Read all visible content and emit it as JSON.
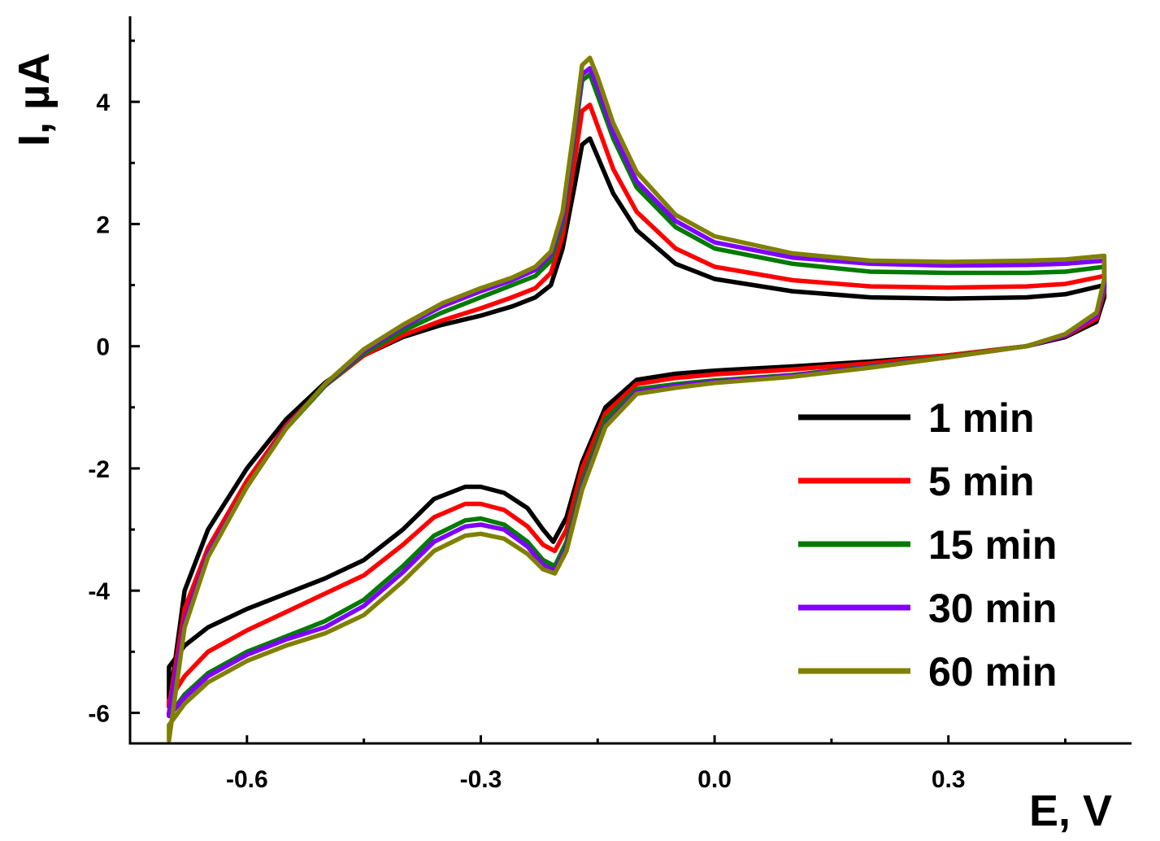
{
  "chart_data": {
    "type": "line",
    "xlabel": "E, V",
    "ylabel": "I, µA",
    "xlim": [
      -0.75,
      0.535
    ],
    "ylim": [
      -6.5,
      5.4
    ],
    "x_ticks": [
      -0.6,
      -0.3,
      0.0,
      0.3
    ],
    "x_tick_labels": [
      "-0.6",
      "-0.3",
      "0.0",
      "0.3"
    ],
    "y_ticks": [
      -6,
      -4,
      -2,
      0,
      2,
      4
    ],
    "y_tick_labels": [
      "-6",
      "-4",
      "-2",
      "0",
      "2",
      "4"
    ],
    "grid": false,
    "legend_position": "bottom-right",
    "series": [
      {
        "name": "1 min",
        "color": "#000000",
        "forward": [
          [
            -0.7,
            -5.25
          ],
          [
            -0.68,
            -4.9
          ],
          [
            -0.65,
            -4.6
          ],
          [
            -0.6,
            -4.3
          ],
          [
            -0.55,
            -4.05
          ],
          [
            -0.5,
            -3.8
          ],
          [
            -0.45,
            -3.5
          ],
          [
            -0.4,
            -3.0
          ],
          [
            -0.36,
            -2.5
          ],
          [
            -0.32,
            -2.3
          ],
          [
            -0.3,
            -2.3
          ],
          [
            -0.27,
            -2.4
          ],
          [
            -0.24,
            -2.65
          ],
          [
            -0.22,
            -3.0
          ],
          [
            -0.207,
            -3.2
          ],
          [
            -0.19,
            -2.8
          ],
          [
            -0.17,
            -1.9
          ],
          [
            -0.14,
            -1.0
          ],
          [
            -0.1,
            -0.55
          ],
          [
            -0.05,
            -0.45
          ],
          [
            0.0,
            -0.4
          ],
          [
            0.1,
            -0.33
          ],
          [
            0.2,
            -0.25
          ],
          [
            0.3,
            -0.15
          ],
          [
            0.4,
            0.0
          ],
          [
            0.45,
            0.15
          ],
          [
            0.49,
            0.4
          ],
          [
            0.5,
            0.8
          ]
        ],
        "reverse": [
          [
            0.5,
            1.0
          ],
          [
            0.45,
            0.85
          ],
          [
            0.4,
            0.8
          ],
          [
            0.3,
            0.78
          ],
          [
            0.2,
            0.8
          ],
          [
            0.1,
            0.9
          ],
          [
            0.0,
            1.1
          ],
          [
            -0.05,
            1.35
          ],
          [
            -0.1,
            1.9
          ],
          [
            -0.13,
            2.5
          ],
          [
            -0.15,
            3.1
          ],
          [
            -0.16,
            3.4
          ],
          [
            -0.17,
            3.3
          ],
          [
            -0.18,
            2.6
          ],
          [
            -0.195,
            1.6
          ],
          [
            -0.21,
            1.0
          ],
          [
            -0.23,
            0.8
          ],
          [
            -0.26,
            0.65
          ],
          [
            -0.3,
            0.5
          ],
          [
            -0.35,
            0.35
          ],
          [
            -0.4,
            0.15
          ],
          [
            -0.45,
            -0.15
          ],
          [
            -0.5,
            -0.6
          ],
          [
            -0.55,
            -1.2
          ],
          [
            -0.6,
            -2.0
          ],
          [
            -0.65,
            -3.0
          ],
          [
            -0.68,
            -4.0
          ],
          [
            -0.7,
            -5.9
          ]
        ]
      },
      {
        "name": "5 min",
        "color": "#ff0000",
        "forward": [
          [
            -0.7,
            -5.8
          ],
          [
            -0.68,
            -5.4
          ],
          [
            -0.65,
            -5.0
          ],
          [
            -0.6,
            -4.65
          ],
          [
            -0.55,
            -4.35
          ],
          [
            -0.5,
            -4.05
          ],
          [
            -0.45,
            -3.75
          ],
          [
            -0.4,
            -3.25
          ],
          [
            -0.36,
            -2.8
          ],
          [
            -0.32,
            -2.58
          ],
          [
            -0.3,
            -2.58
          ],
          [
            -0.27,
            -2.68
          ],
          [
            -0.24,
            -2.95
          ],
          [
            -0.22,
            -3.25
          ],
          [
            -0.205,
            -3.35
          ],
          [
            -0.19,
            -3.0
          ],
          [
            -0.17,
            -2.0
          ],
          [
            -0.14,
            -1.1
          ],
          [
            -0.1,
            -0.62
          ],
          [
            -0.05,
            -0.52
          ],
          [
            0.0,
            -0.46
          ],
          [
            0.1,
            -0.38
          ],
          [
            0.2,
            -0.28
          ],
          [
            0.3,
            -0.15
          ],
          [
            0.4,
            0.0
          ],
          [
            0.45,
            0.17
          ],
          [
            0.49,
            0.45
          ],
          [
            0.5,
            0.9
          ]
        ],
        "reverse": [
          [
            0.5,
            1.15
          ],
          [
            0.45,
            1.02
          ],
          [
            0.4,
            0.98
          ],
          [
            0.3,
            0.96
          ],
          [
            0.2,
            0.98
          ],
          [
            0.1,
            1.08
          ],
          [
            0.0,
            1.3
          ],
          [
            -0.05,
            1.6
          ],
          [
            -0.1,
            2.2
          ],
          [
            -0.13,
            2.9
          ],
          [
            -0.15,
            3.6
          ],
          [
            -0.16,
            3.95
          ],
          [
            -0.17,
            3.85
          ],
          [
            -0.18,
            3.0
          ],
          [
            -0.195,
            1.8
          ],
          [
            -0.21,
            1.2
          ],
          [
            -0.23,
            0.95
          ],
          [
            -0.26,
            0.8
          ],
          [
            -0.3,
            0.62
          ],
          [
            -0.35,
            0.42
          ],
          [
            -0.4,
            0.18
          ],
          [
            -0.45,
            -0.15
          ],
          [
            -0.5,
            -0.65
          ],
          [
            -0.55,
            -1.3
          ],
          [
            -0.6,
            -2.2
          ],
          [
            -0.65,
            -3.3
          ],
          [
            -0.68,
            -4.3
          ],
          [
            -0.7,
            -5.9
          ]
        ]
      },
      {
        "name": "15 min",
        "color": "#007a00",
        "forward": [
          [
            -0.7,
            -6.05
          ],
          [
            -0.68,
            -5.7
          ],
          [
            -0.65,
            -5.35
          ],
          [
            -0.6,
            -5.0
          ],
          [
            -0.55,
            -4.75
          ],
          [
            -0.5,
            -4.5
          ],
          [
            -0.45,
            -4.15
          ],
          [
            -0.4,
            -3.6
          ],
          [
            -0.36,
            -3.1
          ],
          [
            -0.32,
            -2.85
          ],
          [
            -0.3,
            -2.82
          ],
          [
            -0.27,
            -2.92
          ],
          [
            -0.24,
            -3.2
          ],
          [
            -0.22,
            -3.5
          ],
          [
            -0.205,
            -3.6
          ],
          [
            -0.19,
            -3.2
          ],
          [
            -0.17,
            -2.2
          ],
          [
            -0.14,
            -1.2
          ],
          [
            -0.1,
            -0.7
          ],
          [
            -0.05,
            -0.62
          ],
          [
            0.0,
            -0.56
          ],
          [
            0.1,
            -0.47
          ],
          [
            0.2,
            -0.33
          ],
          [
            0.3,
            -0.17
          ],
          [
            0.4,
            0.0
          ],
          [
            0.45,
            0.18
          ],
          [
            0.49,
            0.5
          ],
          [
            0.5,
            0.95
          ]
        ],
        "reverse": [
          [
            0.5,
            1.3
          ],
          [
            0.45,
            1.22
          ],
          [
            0.4,
            1.2
          ],
          [
            0.3,
            1.2
          ],
          [
            0.2,
            1.22
          ],
          [
            0.1,
            1.35
          ],
          [
            0.0,
            1.6
          ],
          [
            -0.05,
            1.95
          ],
          [
            -0.1,
            2.6
          ],
          [
            -0.13,
            3.4
          ],
          [
            -0.15,
            4.1
          ],
          [
            -0.16,
            4.45
          ],
          [
            -0.17,
            4.35
          ],
          [
            -0.18,
            3.4
          ],
          [
            -0.195,
            2.0
          ],
          [
            -0.21,
            1.4
          ],
          [
            -0.23,
            1.15
          ],
          [
            -0.26,
            1.0
          ],
          [
            -0.3,
            0.8
          ],
          [
            -0.35,
            0.55
          ],
          [
            -0.4,
            0.25
          ],
          [
            -0.45,
            -0.12
          ],
          [
            -0.5,
            -0.65
          ],
          [
            -0.55,
            -1.35
          ],
          [
            -0.6,
            -2.3
          ],
          [
            -0.65,
            -3.4
          ],
          [
            -0.68,
            -4.5
          ],
          [
            -0.7,
            -6.0
          ]
        ]
      },
      {
        "name": "30 min",
        "color": "#8000ff",
        "forward": [
          [
            -0.7,
            -6.05
          ],
          [
            -0.68,
            -5.75
          ],
          [
            -0.65,
            -5.4
          ],
          [
            -0.6,
            -5.05
          ],
          [
            -0.55,
            -4.8
          ],
          [
            -0.5,
            -4.6
          ],
          [
            -0.45,
            -4.25
          ],
          [
            -0.4,
            -3.7
          ],
          [
            -0.36,
            -3.2
          ],
          [
            -0.32,
            -2.95
          ],
          [
            -0.3,
            -2.92
          ],
          [
            -0.27,
            -3.0
          ],
          [
            -0.24,
            -3.28
          ],
          [
            -0.22,
            -3.58
          ],
          [
            -0.205,
            -3.68
          ],
          [
            -0.19,
            -3.3
          ],
          [
            -0.17,
            -2.3
          ],
          [
            -0.14,
            -1.3
          ],
          [
            -0.1,
            -0.75
          ],
          [
            -0.05,
            -0.65
          ],
          [
            0.0,
            -0.58
          ],
          [
            0.1,
            -0.48
          ],
          [
            0.2,
            -0.34
          ],
          [
            0.3,
            -0.18
          ],
          [
            0.4,
            0.0
          ],
          [
            0.45,
            0.18
          ],
          [
            0.49,
            0.5
          ],
          [
            0.5,
            1.0
          ]
        ],
        "reverse": [
          [
            0.5,
            1.4
          ],
          [
            0.45,
            1.35
          ],
          [
            0.4,
            1.33
          ],
          [
            0.3,
            1.32
          ],
          [
            0.2,
            1.35
          ],
          [
            0.1,
            1.45
          ],
          [
            0.0,
            1.7
          ],
          [
            -0.05,
            2.05
          ],
          [
            -0.1,
            2.7
          ],
          [
            -0.13,
            3.5
          ],
          [
            -0.15,
            4.25
          ],
          [
            -0.16,
            4.55
          ],
          [
            -0.17,
            4.45
          ],
          [
            -0.18,
            3.5
          ],
          [
            -0.195,
            2.1
          ],
          [
            -0.21,
            1.5
          ],
          [
            -0.23,
            1.25
          ],
          [
            -0.26,
            1.08
          ],
          [
            -0.3,
            0.9
          ],
          [
            -0.35,
            0.65
          ],
          [
            -0.4,
            0.32
          ],
          [
            -0.45,
            -0.08
          ],
          [
            -0.5,
            -0.63
          ],
          [
            -0.55,
            -1.33
          ],
          [
            -0.6,
            -2.3
          ],
          [
            -0.65,
            -3.4
          ],
          [
            -0.68,
            -4.5
          ],
          [
            -0.7,
            -6.0
          ]
        ]
      },
      {
        "name": "60 min",
        "color": "#808000",
        "forward": [
          [
            -0.7,
            -6.2
          ],
          [
            -0.68,
            -5.85
          ],
          [
            -0.65,
            -5.5
          ],
          [
            -0.6,
            -5.15
          ],
          [
            -0.55,
            -4.9
          ],
          [
            -0.5,
            -4.7
          ],
          [
            -0.45,
            -4.4
          ],
          [
            -0.4,
            -3.85
          ],
          [
            -0.36,
            -3.35
          ],
          [
            -0.32,
            -3.1
          ],
          [
            -0.3,
            -3.07
          ],
          [
            -0.27,
            -3.15
          ],
          [
            -0.24,
            -3.4
          ],
          [
            -0.22,
            -3.65
          ],
          [
            -0.205,
            -3.72
          ],
          [
            -0.19,
            -3.35
          ],
          [
            -0.17,
            -2.35
          ],
          [
            -0.14,
            -1.32
          ],
          [
            -0.1,
            -0.78
          ],
          [
            -0.05,
            -0.68
          ],
          [
            0.0,
            -0.6
          ],
          [
            0.1,
            -0.5
          ],
          [
            0.2,
            -0.35
          ],
          [
            0.3,
            -0.18
          ],
          [
            0.4,
            0.0
          ],
          [
            0.45,
            0.2
          ],
          [
            0.49,
            0.55
          ],
          [
            0.5,
            1.1
          ]
        ],
        "reverse": [
          [
            0.5,
            1.48
          ],
          [
            0.45,
            1.42
          ],
          [
            0.4,
            1.4
          ],
          [
            0.3,
            1.38
          ],
          [
            0.2,
            1.4
          ],
          [
            0.1,
            1.52
          ],
          [
            0.0,
            1.8
          ],
          [
            -0.05,
            2.15
          ],
          [
            -0.1,
            2.85
          ],
          [
            -0.13,
            3.65
          ],
          [
            -0.15,
            4.4
          ],
          [
            -0.16,
            4.72
          ],
          [
            -0.17,
            4.6
          ],
          [
            -0.18,
            3.6
          ],
          [
            -0.195,
            2.2
          ],
          [
            -0.21,
            1.55
          ],
          [
            -0.23,
            1.3
          ],
          [
            -0.26,
            1.12
          ],
          [
            -0.3,
            0.95
          ],
          [
            -0.35,
            0.7
          ],
          [
            -0.4,
            0.35
          ],
          [
            -0.45,
            -0.05
          ],
          [
            -0.5,
            -0.62
          ],
          [
            -0.55,
            -1.35
          ],
          [
            -0.6,
            -2.3
          ],
          [
            -0.65,
            -3.45
          ],
          [
            -0.68,
            -4.6
          ],
          [
            -0.7,
            -6.45
          ]
        ]
      }
    ]
  }
}
